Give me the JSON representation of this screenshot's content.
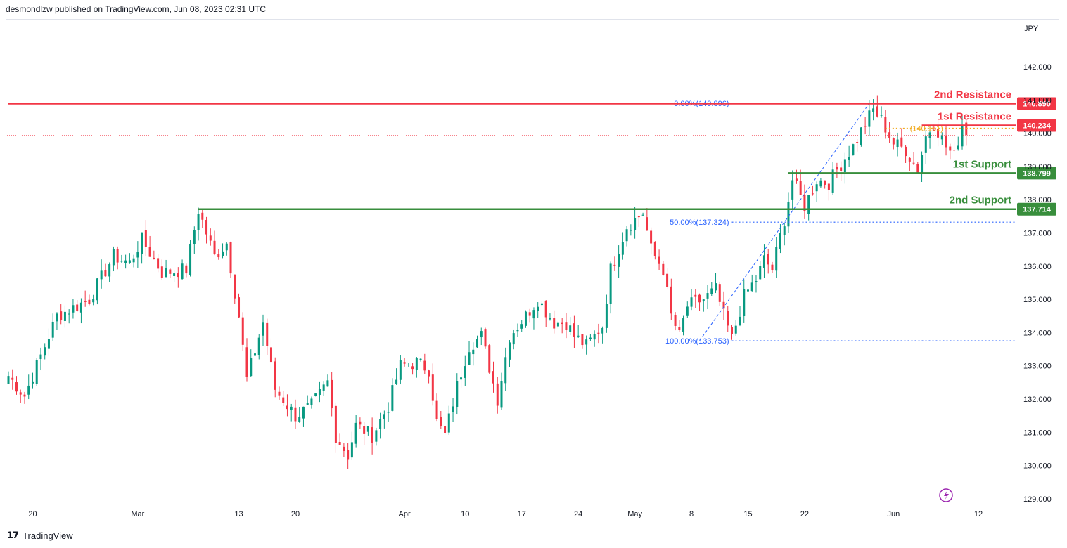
{
  "header": {
    "text": "desmondlzw published on TradingView.com, Jun 08, 2023 02:31 UTC"
  },
  "footer": {
    "brand": "TradingView"
  },
  "colors": {
    "up": "#089981",
    "down": "#f23645",
    "resistance": "#f23645",
    "support": "#388e3c",
    "fib": "#2962ff",
    "fib_mid": "#f0a91b",
    "lightning": "#9c27b0"
  },
  "chart_data": {
    "type": "candlestick",
    "currency_label": "JPY",
    "y_ticks": [
      "129.000",
      "130.000",
      "131.000",
      "132.000",
      "133.000",
      "134.000",
      "135.000",
      "136.000",
      "137.000",
      "138.000",
      "139.000",
      "140.000",
      "141.000",
      "142.000"
    ],
    "x_ticks": [
      {
        "label": "20",
        "t": 6
      },
      {
        "label": "Mar",
        "t": 32
      },
      {
        "label": "13",
        "t": 57
      },
      {
        "label": "20",
        "t": 71
      },
      {
        "label": "Apr",
        "t": 98
      },
      {
        "label": "10",
        "t": 113
      },
      {
        "label": "17",
        "t": 127
      },
      {
        "label": "24",
        "t": 141
      },
      {
        "label": "May",
        "t": 155
      },
      {
        "label": "8",
        "t": 169
      },
      {
        "label": "15",
        "t": 183
      },
      {
        "label": "22",
        "t": 197
      },
      {
        "label": "Jun",
        "t": 219
      },
      {
        "label": "12",
        "t": 240
      }
    ],
    "levels": [
      {
        "name": "2nd Resistance",
        "value": 140.89,
        "badge": "140.890",
        "kind": "resistance",
        "from_t": 0
      },
      {
        "name": "1st Resistance",
        "value": 140.234,
        "badge": "140.234",
        "kind": "resistance",
        "from_t": 226
      },
      {
        "name": "1st Support",
        "value": 138.799,
        "badge": "138.799",
        "kind": "support",
        "from_t": 193
      },
      {
        "name": "2nd Support",
        "value": 137.714,
        "badge": "137.714",
        "kind": "support",
        "from_t": 47
      }
    ],
    "fib_levels": [
      {
        "label": "0.00%(140.896)",
        "value": 140.896,
        "style": "fib"
      },
      {
        "label": "(140.151)",
        "value": 140.151,
        "style": "fib_mid"
      },
      {
        "label": "50.00%(137.324)",
        "value": 137.324,
        "style": "fib"
      },
      {
        "label": "100.00%(133.753)",
        "value": 133.753,
        "style": "fib"
      }
    ],
    "fib_from_t": 179,
    "current_price": 139.93,
    "anchors": [
      [
        0,
        132.7
      ],
      [
        4,
        132.1
      ],
      [
        12,
        134.5
      ],
      [
        20,
        135.0
      ],
      [
        26,
        136.3
      ],
      [
        30,
        136.1
      ],
      [
        33,
        136.8
      ],
      [
        38,
        135.8
      ],
      [
        44,
        135.9
      ],
      [
        47,
        137.7
      ],
      [
        51,
        136.3
      ],
      [
        54,
        136.7
      ],
      [
        57,
        134.5
      ],
      [
        59,
        132.6
      ],
      [
        63,
        134.3
      ],
      [
        66,
        132.3
      ],
      [
        71,
        131.5
      ],
      [
        75,
        131.8
      ],
      [
        79,
        132.5
      ],
      [
        81,
        130.9
      ],
      [
        84,
        130.3
      ],
      [
        86,
        131.2
      ],
      [
        90,
        130.9
      ],
      [
        94,
        131.8
      ],
      [
        97,
        133.0
      ],
      [
        101,
        133.1
      ],
      [
        104,
        132.9
      ],
      [
        106,
        131.3
      ],
      [
        108,
        130.9
      ],
      [
        111,
        132.4
      ],
      [
        114,
        133.6
      ],
      [
        117,
        133.9
      ],
      [
        121,
        132.0
      ],
      [
        124,
        133.9
      ],
      [
        128,
        134.5
      ],
      [
        131,
        135.0
      ],
      [
        135,
        134.3
      ],
      [
        138,
        134.3
      ],
      [
        140,
        133.9
      ],
      [
        143,
        133.6
      ],
      [
        147,
        134.2
      ],
      [
        149,
        135.9
      ],
      [
        153,
        137.2
      ],
      [
        157,
        137.6
      ],
      [
        159,
        136.5
      ],
      [
        162,
        135.9
      ],
      [
        164,
        134.5
      ],
      [
        166,
        133.9
      ],
      [
        168,
        134.8
      ],
      [
        172,
        135.0
      ],
      [
        175,
        135.3
      ],
      [
        177,
        134.5
      ],
      [
        179,
        133.8
      ],
      [
        182,
        135.1
      ],
      [
        185,
        135.6
      ],
      [
        187,
        136.2
      ],
      [
        189,
        135.9
      ],
      [
        192,
        137.4
      ],
      [
        194,
        138.6
      ],
      [
        197,
        137.8
      ],
      [
        200,
        138.6
      ],
      [
        203,
        138.5
      ],
      [
        205,
        138.9
      ],
      [
        209,
        139.6
      ],
      [
        212,
        140.3
      ],
      [
        214,
        140.7
      ],
      [
        216,
        140.4
      ],
      [
        219,
        139.7
      ],
      [
        222,
        139.5
      ],
      [
        225,
        138.9
      ],
      [
        227,
        139.9
      ],
      [
        229,
        140.3
      ],
      [
        232,
        139.6
      ],
      [
        234,
        139.3
      ],
      [
        236,
        140.3
      ],
      [
        237,
        139.95
      ]
    ]
  }
}
